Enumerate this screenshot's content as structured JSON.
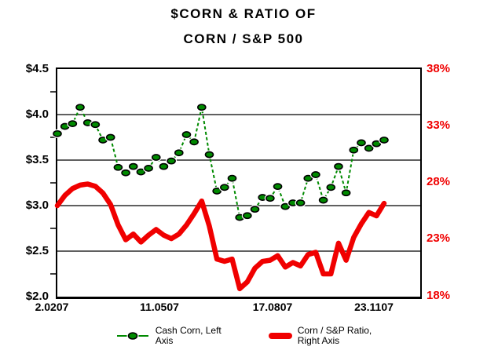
{
  "title": {
    "line1": "$CORN & RATIO OF",
    "line2": "CORN / S&P 500"
  },
  "colors": {
    "corn_series": "#008A00",
    "corn_marker_fill": "#008A00",
    "corn_marker_outline": "#000000",
    "ratio_series": "#F00000",
    "left_axis_text": "#000000",
    "right_axis_text": "#F00000",
    "grid": "#000000",
    "background": "#FFFFFF"
  },
  "legend": {
    "items": [
      {
        "label": "Cash Corn, Left Axis",
        "line1": "Cash Corn, Left",
        "line2": "Axis",
        "swatch": "green-dashed-line-with-circle-marker"
      },
      {
        "label": "Corn / S&P Ratio, Right Axis",
        "line1": "Corn / S&P Ratio,",
        "line2": "Right Axis",
        "swatch": "thick-red-line"
      }
    ]
  },
  "chart_data": {
    "type": "line",
    "title": "$CORN & RATIO OF CORN / S&P 500",
    "legend_position": "bottom",
    "grid": "horizontal-only",
    "x_tick_labels": [
      "2.0207",
      "11.0507",
      "17.0807",
      "23.1107"
    ],
    "left_axis": {
      "labels": [
        "$4.5",
        "$4.0",
        "$3.5",
        "$3.0",
        "$2.5",
        "$2.0"
      ],
      "min": 2.0,
      "max": 4.5,
      "gridline_values": [
        4.0,
        3.5,
        3.0,
        2.5
      ],
      "minor_tick_values": [
        4.25,
        3.75,
        3.25,
        2.75,
        2.25
      ]
    },
    "right_axis": {
      "labels": [
        "38%",
        "33%",
        "28%",
        "23%",
        "18%"
      ],
      "min": 18,
      "max": 38
    },
    "series": [
      {
        "name": "Cash Corn, Left Axis",
        "axis": "left",
        "style": "dashed-with-circle-markers",
        "values": [
          3.79,
          3.87,
          3.9,
          4.08,
          3.91,
          3.89,
          3.72,
          3.75,
          3.42,
          3.36,
          3.43,
          3.37,
          3.41,
          3.53,
          3.43,
          3.49,
          3.58,
          3.78,
          3.7,
          4.08,
          3.56,
          3.16,
          3.2,
          3.3,
          2.87,
          2.89,
          2.96,
          3.09,
          3.08,
          3.21,
          2.99,
          3.03,
          3.03,
          3.3,
          3.34,
          3.06,
          3.2,
          3.43,
          3.14,
          3.61,
          3.69,
          3.63,
          3.68,
          3.72
        ]
      },
      {
        "name": "Corn / S&P Ratio, Right Axis",
        "axis": "right",
        "style": "thick-solid",
        "values": [
          26.0,
          26.9,
          27.5,
          27.8,
          27.9,
          27.7,
          27.1,
          26.1,
          24.3,
          23.0,
          23.5,
          22.8,
          23.4,
          23.9,
          23.4,
          23.1,
          23.5,
          24.3,
          25.3,
          26.4,
          24.2,
          21.3,
          21.1,
          21.3,
          18.7,
          19.3,
          20.5,
          21.1,
          21.2,
          21.6,
          20.6,
          21.0,
          20.7,
          21.7,
          21.9,
          20.0,
          20.0,
          22.7,
          21.2,
          23.2,
          24.4,
          25.4,
          25.1,
          26.2
        ]
      }
    ]
  }
}
